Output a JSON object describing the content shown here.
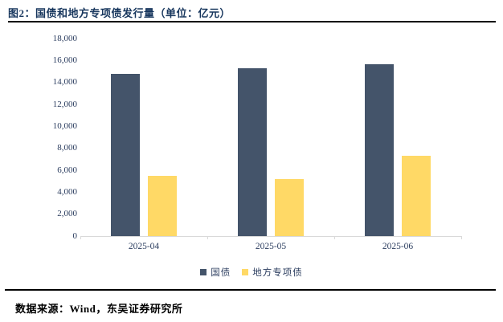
{
  "header": {
    "title": "图2：国债和地方专项债发行量（单位：亿元）"
  },
  "footer": {
    "source": "数据来源：Wind，东吴证券研究所"
  },
  "colors": {
    "treasury_navy": "#44546A",
    "special_bond_yellow": "#FFD966",
    "title_navy": "#17365D",
    "axis_gray": "#D9D9D9",
    "tick_text": "#2B3D5F"
  },
  "chart_data": {
    "type": "bar",
    "title": "图2：国债和地方专项债发行量（单位：亿元）",
    "unit": "亿元",
    "categories": [
      "2025-04",
      "2025-05",
      "2025-06"
    ],
    "series": [
      {
        "name": "国债",
        "color": "#44546A",
        "values": [
          14800,
          15300,
          15650
        ]
      },
      {
        "name": "地方专项债",
        "color": "#FFD966",
        "values": [
          5500,
          5200,
          7300
        ]
      }
    ],
    "ylim": [
      0,
      18000
    ],
    "ytick_step": 2000,
    "ytick_labels": [
      "0",
      "2,000",
      "4,000",
      "6,000",
      "8,000",
      "10,000",
      "12,000",
      "14,000",
      "16,000",
      "18,000"
    ],
    "grid": false,
    "legend_position": "bottom"
  }
}
